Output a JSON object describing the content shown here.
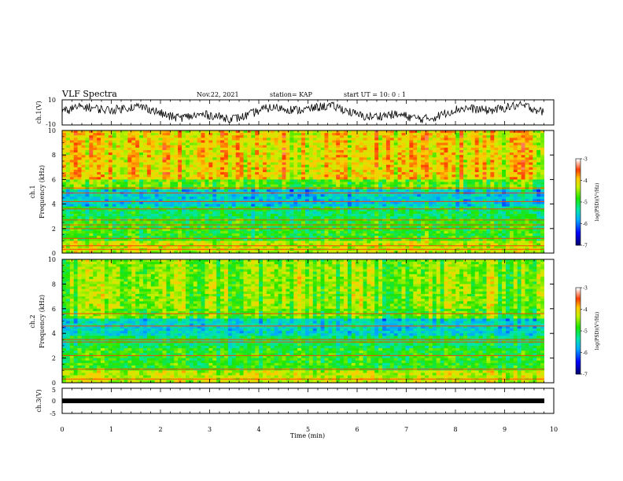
{
  "header": {
    "title": "VLF Spectra",
    "date": "Nov.22, 2021",
    "station": "station= KAP",
    "start_ut": "start  UT =  10: 0  : 1"
  },
  "chart_data": [
    {
      "type": "line",
      "name": "ch1-waveform",
      "ylabel": "ch.1(V)",
      "ylim": [
        -10,
        10
      ],
      "yticks": [
        "10",
        "-10"
      ],
      "xlim": [
        0,
        10
      ]
    },
    {
      "type": "heatmap",
      "name": "ch1-spectrogram",
      "ylabel": "ch.1\nFrequency  (kHz)",
      "ylabel_top": "ch.1",
      "ylabel_bottom": "Frequency  (kHz)",
      "ylim": [
        0,
        10
      ],
      "yticks": [
        "0",
        "2",
        "4",
        "6",
        "8",
        "10"
      ],
      "xlim": [
        0,
        10
      ],
      "colorbar": {
        "label": "log(PSD)(V²/Hz)",
        "range": [
          -7,
          -3
        ],
        "ticks": [
          "-3",
          "-4",
          "-5",
          "-6",
          "-7"
        ]
      }
    },
    {
      "type": "heatmap",
      "name": "ch2-spectrogram",
      "ylabel_top": "ch.2",
      "ylabel_bottom": "Frequency  (kHz)",
      "ylim": [
        0,
        10
      ],
      "yticks": [
        "0",
        "2",
        "4",
        "6",
        "8",
        "10"
      ],
      "xlim": [
        0,
        10
      ],
      "colorbar": {
        "label": "log(PSD)(V²/Hz)",
        "range": [
          -7,
          -3
        ],
        "ticks": [
          "-3",
          "-4",
          "-5",
          "-6",
          "-7"
        ]
      }
    },
    {
      "type": "line",
      "name": "ch3-waveform",
      "ylabel": "ch.3(V)",
      "ylim": [
        -5,
        5
      ],
      "yticks": [
        "5",
        "0",
        "-5"
      ],
      "xlim": [
        0,
        10
      ],
      "xlabel": "Time  (min)",
      "xticks": [
        "0",
        "1",
        "2",
        "3",
        "4",
        "5",
        "6",
        "7",
        "8",
        "9",
        "10"
      ],
      "level": 0
    }
  ],
  "colors": {
    "low": "#000080",
    "mid": "#00e000",
    "high": "#ff0000"
  }
}
